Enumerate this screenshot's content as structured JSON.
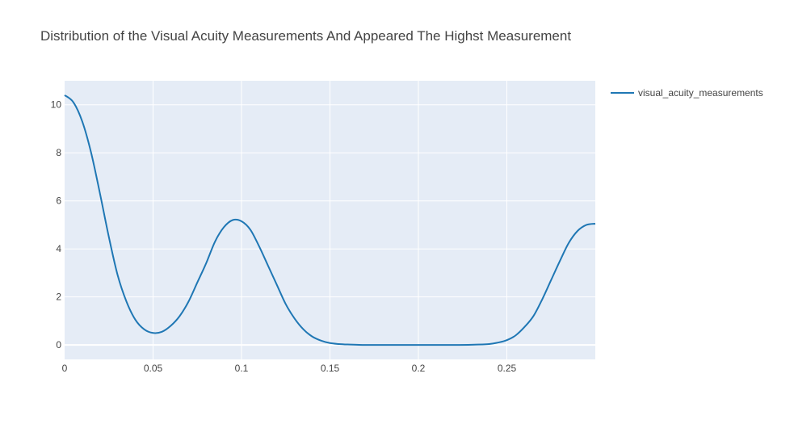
{
  "chart_data": {
    "type": "line",
    "title": "Distribution of the Visual Acuity Measurements And Appeared The Highst Measurement",
    "xlabel": "",
    "ylabel": "",
    "xlim": [
      0,
      0.3
    ],
    "ylim": [
      -0.6,
      11
    ],
    "x_ticks": [
      0,
      0.05,
      0.1,
      0.15,
      0.2,
      0.25
    ],
    "x_tick_labels": [
      "0",
      "0.05",
      "0.1",
      "0.15",
      "0.2",
      "0.25"
    ],
    "y_ticks": [
      0,
      2,
      4,
      6,
      8,
      10
    ],
    "y_tick_labels": [
      "0",
      "2",
      "4",
      "6",
      "8",
      "10"
    ],
    "grid": true,
    "legend_position": "top-right",
    "colors": {
      "plot_background": "#e5ecf6",
      "grid": "#ffffff",
      "line": "#1f77b4",
      "text": "#444444"
    },
    "series": [
      {
        "name": "visual_acuity_measurements",
        "x": [
          0,
          0.005,
          0.01,
          0.015,
          0.02,
          0.025,
          0.03,
          0.035,
          0.04,
          0.045,
          0.05,
          0.055,
          0.06,
          0.065,
          0.07,
          0.075,
          0.08,
          0.085,
          0.09,
          0.095,
          0.1,
          0.105,
          0.11,
          0.115,
          0.12,
          0.125,
          0.13,
          0.135,
          0.14,
          0.145,
          0.15,
          0.155,
          0.16,
          0.165,
          0.17,
          0.18,
          0.19,
          0.2,
          0.21,
          0.22,
          0.23,
          0.24,
          0.245,
          0.25,
          0.255,
          0.26,
          0.265,
          0.27,
          0.275,
          0.28,
          0.285,
          0.29,
          0.295,
          0.3
        ],
        "y": [
          10.4,
          10.1,
          9.3,
          8.0,
          6.3,
          4.5,
          2.9,
          1.8,
          1.05,
          0.65,
          0.5,
          0.55,
          0.8,
          1.2,
          1.8,
          2.6,
          3.4,
          4.3,
          4.9,
          5.2,
          5.15,
          4.8,
          4.1,
          3.3,
          2.5,
          1.7,
          1.1,
          0.65,
          0.35,
          0.18,
          0.08,
          0.04,
          0.02,
          0.01,
          0.0,
          0.0,
          0.0,
          0.0,
          0.0,
          0.0,
          0.01,
          0.04,
          0.1,
          0.2,
          0.4,
          0.75,
          1.2,
          1.9,
          2.7,
          3.5,
          4.25,
          4.75,
          5.0,
          5.05
        ]
      }
    ]
  }
}
